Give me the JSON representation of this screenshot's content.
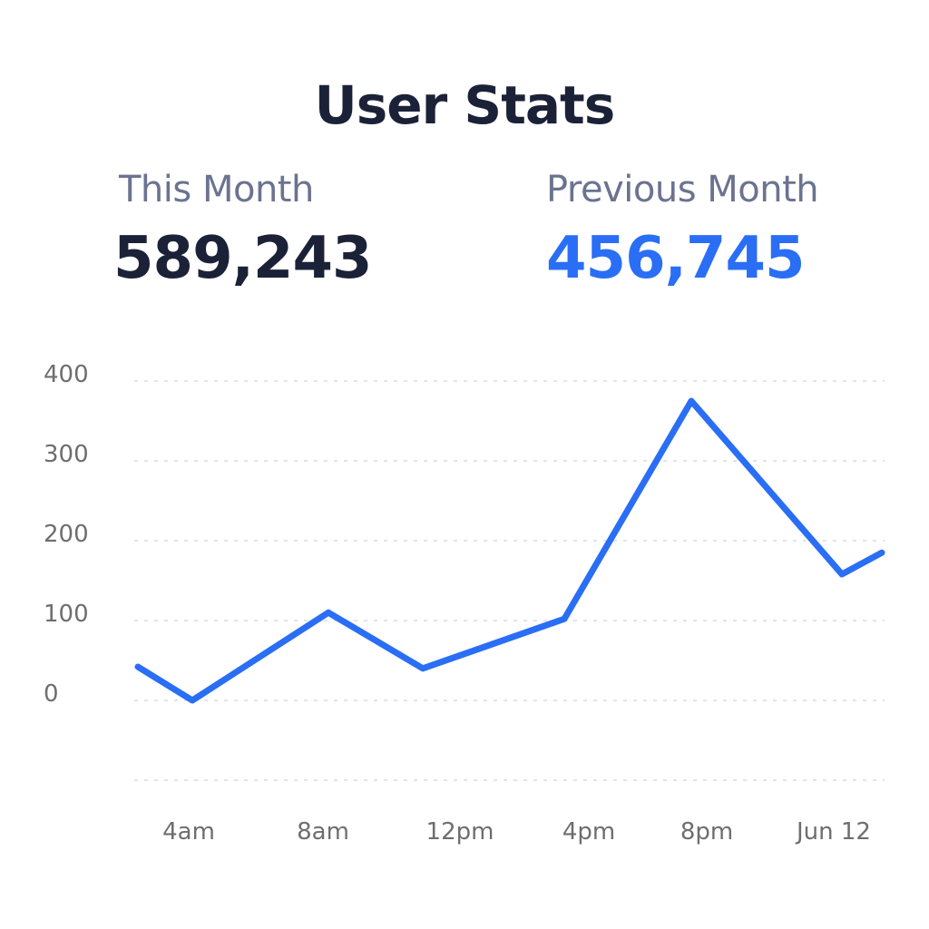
{
  "title": "User Stats",
  "stats": {
    "this_month": {
      "label": "This Month",
      "value": "589,243",
      "color": "#1b2238"
    },
    "previous_month": {
      "label": "Previous Month",
      "value": "456,745",
      "color": "#2a6ef5"
    }
  },
  "chart_data": {
    "type": "line",
    "title": "",
    "xlabel": "",
    "ylabel": "",
    "yticks": [
      "400",
      "300",
      "200",
      "100",
      "0"
    ],
    "ylim": [
      -100,
      400
    ],
    "xtick_labels": [
      "4am",
      "8am",
      "12pm",
      "4pm",
      "8pm",
      "Jun 12"
    ],
    "grid": true,
    "series": [
      {
        "color": "#2a6ef5",
        "points": [
          {
            "x": "3am",
            "y": 42
          },
          {
            "x": "4am",
            "y": 0
          },
          {
            "x": "8am",
            "y": 110
          },
          {
            "x": "12pm",
            "y": 40
          },
          {
            "x": "4pm",
            "y": 102
          },
          {
            "x": "8pm",
            "y": 375
          },
          {
            "x": "Jun 12 (early)",
            "y": 158
          },
          {
            "x": "Jun 12",
            "y": 185
          }
        ]
      }
    ]
  }
}
